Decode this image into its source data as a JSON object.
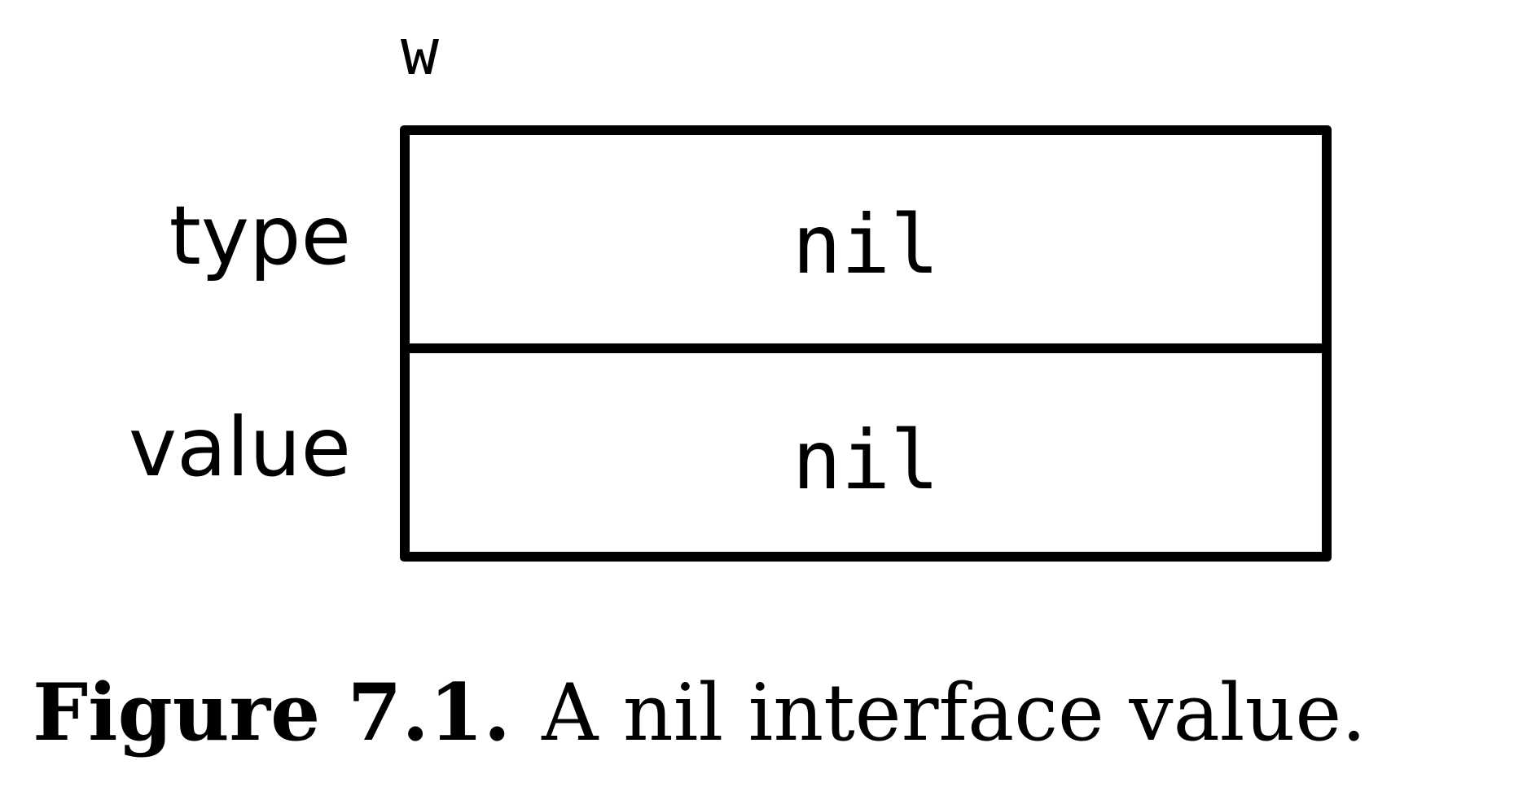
{
  "diagram": {
    "variable_name": "w",
    "rows": [
      {
        "label": "type",
        "value": "nil"
      },
      {
        "label": "value",
        "value": "nil"
      }
    ]
  },
  "caption": {
    "number": "Figure 7.1.",
    "text": "A nil interface value."
  }
}
